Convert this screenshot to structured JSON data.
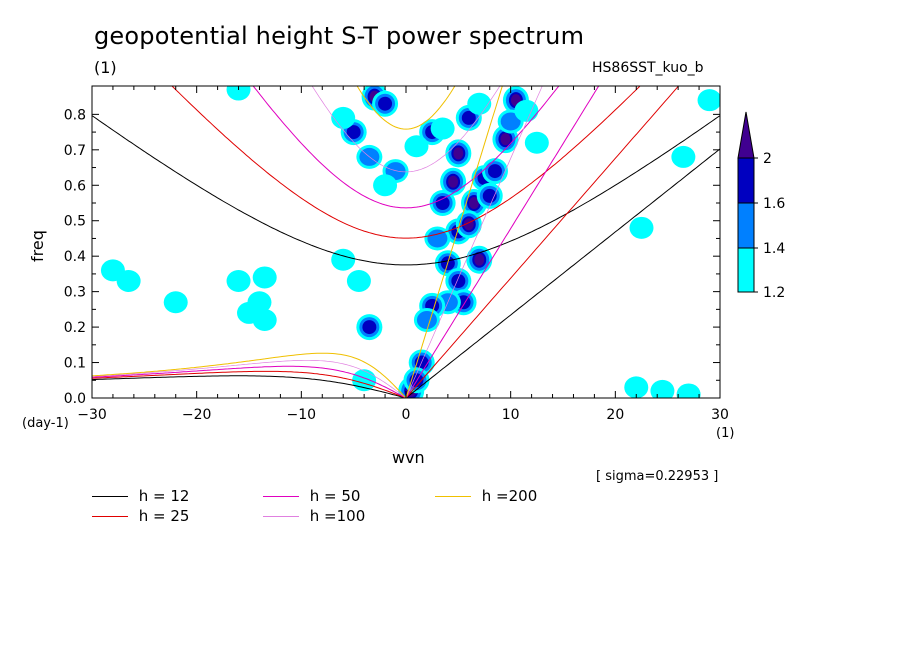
{
  "chart_data": {
    "type": "contour",
    "title": "geopotential height S-T power spectrum",
    "subtitle": "(1)",
    "case_label": "HS86SST_kuo_b",
    "xlabel": "wvn",
    "ylabel": "freq",
    "x_unit": "(1)",
    "y_unit": "(day-1)",
    "xlim": [
      -30,
      30
    ],
    "ylim": [
      0,
      0.88
    ],
    "x_ticks": [
      -30,
      -20,
      -10,
      0,
      10,
      20,
      30
    ],
    "y_ticks": [
      0.0,
      0.1,
      0.2,
      0.3,
      0.4,
      0.5,
      0.6,
      0.7,
      0.8
    ],
    "x_tick_labels": [
      "−30",
      "−20",
      "−10",
      "0",
      "10",
      "20",
      "30"
    ],
    "y_tick_labels": [
      "0.0",
      "0.1",
      "0.2",
      "0.3",
      "0.4",
      "0.5",
      "0.6",
      "0.7",
      "0.8"
    ],
    "sigma_label": "[ sigma=0.22953 ]",
    "colorbar": {
      "levels": [
        1.2,
        1.4,
        1.6,
        2
      ],
      "level_labels": [
        "1.2",
        "1.4",
        "1.6",
        "2"
      ],
      "colors": [
        "#00ffff",
        "#0080ff",
        "#0000c0",
        "#400090"
      ]
    },
    "dispersion_curves": [
      {
        "name": "h = 12",
        "h": 12,
        "color": "#000000"
      },
      {
        "name": "h = 25",
        "h": 25,
        "color": "#e00000"
      },
      {
        "name": "h = 50",
        "h": 50,
        "color": "#e000c0"
      },
      {
        "name": "h =100",
        "h": 100,
        "color": "#e080e0"
      },
      {
        "name": "h =200",
        "h": 200,
        "color": "#f0c000"
      }
    ],
    "power_blobs": [
      {
        "x": -3.0,
        "y": 0.85,
        "level": 2
      },
      {
        "x": -2.0,
        "y": 0.83,
        "level": 1.6
      },
      {
        "x": -5.0,
        "y": 0.75,
        "level": 1.6
      },
      {
        "x": -6.0,
        "y": 0.79,
        "level": 1.2
      },
      {
        "x": -3.5,
        "y": 0.68,
        "level": 1.4
      },
      {
        "x": -1.0,
        "y": 0.64,
        "level": 1.4
      },
      {
        "x": 2.5,
        "y": 0.75,
        "level": 1.6
      },
      {
        "x": 3.5,
        "y": 0.76,
        "level": 1.2
      },
      {
        "x": 1.0,
        "y": 0.71,
        "level": 1.2
      },
      {
        "x": -2.0,
        "y": 0.6,
        "level": 1.2
      },
      {
        "x": 5.0,
        "y": 0.69,
        "level": 2
      },
      {
        "x": 4.5,
        "y": 0.61,
        "level": 2
      },
      {
        "x": 3.5,
        "y": 0.55,
        "level": 1.6
      },
      {
        "x": 5.0,
        "y": 0.47,
        "level": 1.6
      },
      {
        "x": 3.0,
        "y": 0.45,
        "level": 1.4
      },
      {
        "x": 4.0,
        "y": 0.38,
        "level": 1.6
      },
      {
        "x": 5.0,
        "y": 0.33,
        "level": 1.6
      },
      {
        "x": 6.0,
        "y": 0.79,
        "level": 1.6
      },
      {
        "x": 7.0,
        "y": 0.83,
        "level": 1.2
      },
      {
        "x": 6.5,
        "y": 0.55,
        "level": 2
      },
      {
        "x": 7.5,
        "y": 0.62,
        "level": 1.6
      },
      {
        "x": 6.0,
        "y": 0.49,
        "level": 2
      },
      {
        "x": 7.0,
        "y": 0.39,
        "level": 2
      },
      {
        "x": 5.5,
        "y": 0.27,
        "level": 1.6
      },
      {
        "x": 4.0,
        "y": 0.27,
        "level": 1.4
      },
      {
        "x": 2.5,
        "y": 0.26,
        "level": 1.6
      },
      {
        "x": 2.0,
        "y": 0.22,
        "level": 1.4
      },
      {
        "x": 10.5,
        "y": 0.84,
        "level": 2
      },
      {
        "x": 9.5,
        "y": 0.73,
        "level": 2
      },
      {
        "x": 10.0,
        "y": 0.78,
        "level": 1.4
      },
      {
        "x": 8.5,
        "y": 0.64,
        "level": 1.6
      },
      {
        "x": 8.0,
        "y": 0.57,
        "level": 1.6
      },
      {
        "x": 12.5,
        "y": 0.72,
        "level": 1.2
      },
      {
        "x": 11.5,
        "y": 0.81,
        "level": 1.2
      },
      {
        "x": -3.5,
        "y": 0.2,
        "level": 1.6
      },
      {
        "x": 1.5,
        "y": 0.1,
        "level": 1.6
      },
      {
        "x": 0.5,
        "y": 0.02,
        "level": 2
      },
      {
        "x": 1.0,
        "y": 0.05,
        "level": 1.6
      },
      {
        "x": -26.5,
        "y": 0.33,
        "level": 1.2
      },
      {
        "x": -22.0,
        "y": 0.27,
        "level": 1.2
      },
      {
        "x": -15.0,
        "y": 0.24,
        "level": 1.2
      },
      {
        "x": -13.5,
        "y": 0.22,
        "level": 1.2
      },
      {
        "x": -16.0,
        "y": 0.33,
        "level": 1.2
      },
      {
        "x": -14.0,
        "y": 0.27,
        "level": 1.2
      },
      {
        "x": -28.0,
        "y": 0.36,
        "level": 1.2
      },
      {
        "x": -13.5,
        "y": 0.34,
        "level": 1.2
      },
      {
        "x": -6.0,
        "y": 0.39,
        "level": 1.2
      },
      {
        "x": -4.5,
        "y": 0.33,
        "level": 1.2
      },
      {
        "x": -16.0,
        "y": 0.87,
        "level": 1.2
      },
      {
        "x": 27.0,
        "y": 0.01,
        "level": 1.2
      },
      {
        "x": 24.5,
        "y": 0.02,
        "level": 1.2
      },
      {
        "x": 22.0,
        "y": 0.03,
        "level": 1.2
      },
      {
        "x": 26.5,
        "y": 0.68,
        "level": 1.2
      },
      {
        "x": 29.0,
        "y": 0.84,
        "level": 1.2
      },
      {
        "x": 22.5,
        "y": 0.48,
        "level": 1.2
      },
      {
        "x": -4.0,
        "y": 0.05,
        "level": 1.2
      }
    ]
  }
}
